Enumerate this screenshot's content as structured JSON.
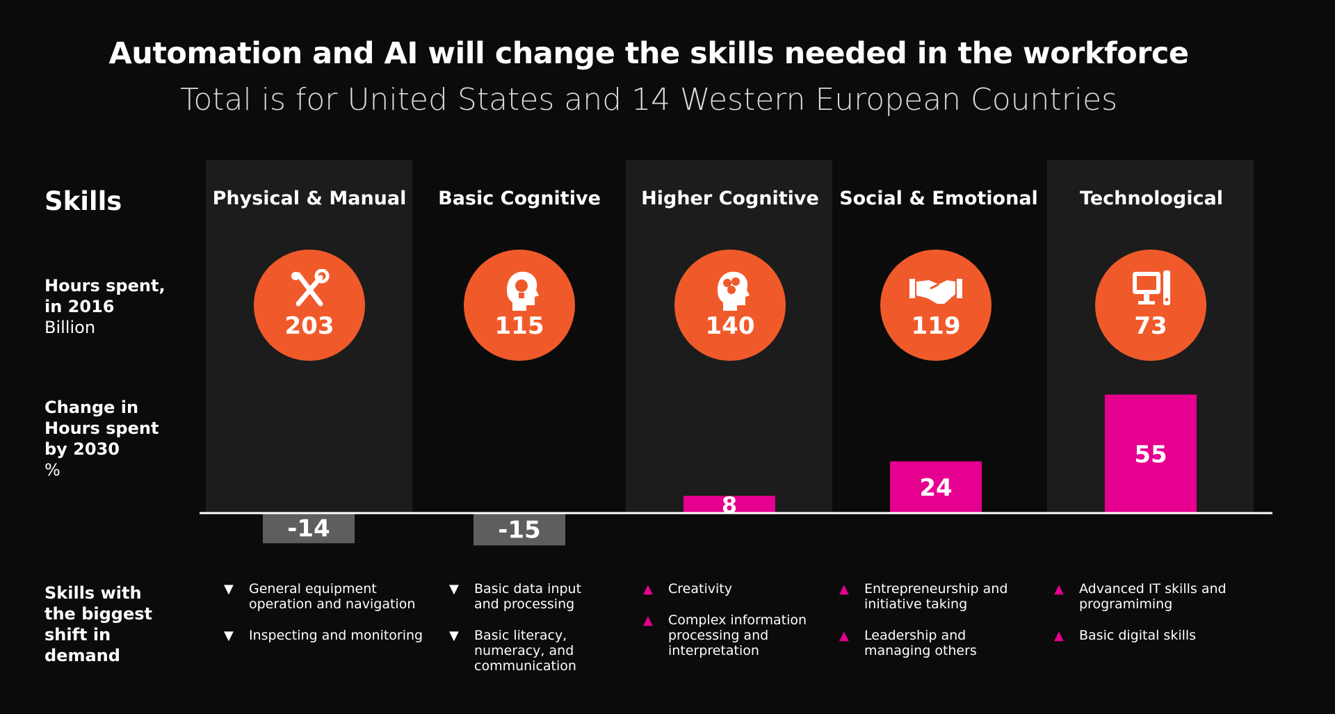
{
  "title": "Automation and AI will change the skills needed in the workforce",
  "subtitle": "Total is for United States and 14 Western European Countries",
  "row_labels": {
    "skills": "Skills",
    "hours_line1": "Hours spent,",
    "hours_line2": "in 2016",
    "hours_unit": "Billion",
    "change_line1": "Change in",
    "change_line2": "Hours spent",
    "change_line3": "by 2030",
    "change_unit": "%",
    "shift_line1": "Skills with",
    "shift_line2": "the biggest",
    "shift_line3": "shift in",
    "shift_line4": "demand"
  },
  "colors": {
    "circle": "#f05a2a",
    "positive_bar": "#e5008f",
    "negative_bar": "#5e5e5e",
    "column_bg": "#1c1c1c",
    "background": "#0b0b0b"
  },
  "chart_data": {
    "type": "bar",
    "categories": [
      "Physical & Manual",
      "Basic Cognitive",
      "Higher Cognitive",
      "Social & Emotional",
      "Technological"
    ],
    "hours_2016_billion": [
      203,
      115,
      140,
      119,
      73
    ],
    "series": [
      {
        "values": [
          -14,
          -15,
          8,
          24,
          55
        ]
      }
    ],
    "value_labels": [
      "-14",
      "-15",
      "8",
      "24",
      "55"
    ],
    "ylim": [
      -15,
      55
    ],
    "icons": [
      "tools-icon",
      "lightbulb-head-icon",
      "brain-head-icon",
      "handshake-icon",
      "computer-icon"
    ]
  },
  "columns": [
    {
      "title": "Physical & Manual",
      "hours": "203",
      "bullets": [
        {
          "dir": "down",
          "text_lines": [
            "General equipment",
            "operation and navigation"
          ]
        },
        {
          "dir": "down",
          "text_lines": [
            "Inspecting and monitoring"
          ]
        }
      ]
    },
    {
      "title": "Basic Cognitive",
      "hours": "115",
      "bullets": [
        {
          "dir": "down",
          "text_lines": [
            "Basic data input",
            "and processing"
          ]
        },
        {
          "dir": "down",
          "text_lines": [
            "Basic literacy,",
            "numeracy, and",
            "communication"
          ]
        }
      ]
    },
    {
      "title": "Higher Cognitive",
      "hours": "140",
      "bullets": [
        {
          "dir": "up",
          "text_lines": [
            "Creativity"
          ]
        },
        {
          "dir": "up",
          "text_lines": [
            "Complex information",
            "processing and",
            "interpretation"
          ]
        }
      ]
    },
    {
      "title": "Social & Emotional",
      "hours": "119",
      "bullets": [
        {
          "dir": "up",
          "text_lines": [
            "Entrepreneurship and",
            "initiative taking"
          ]
        },
        {
          "dir": "up",
          "text_lines": [
            "Leadership and",
            "managing others"
          ]
        }
      ]
    },
    {
      "title": "Technological",
      "hours": "73",
      "bullets": [
        {
          "dir": "up",
          "text_lines": [
            "Advanced IT skills and",
            "programiming"
          ]
        },
        {
          "dir": "up",
          "text_lines": [
            "Basic digital skills"
          ]
        }
      ]
    }
  ]
}
